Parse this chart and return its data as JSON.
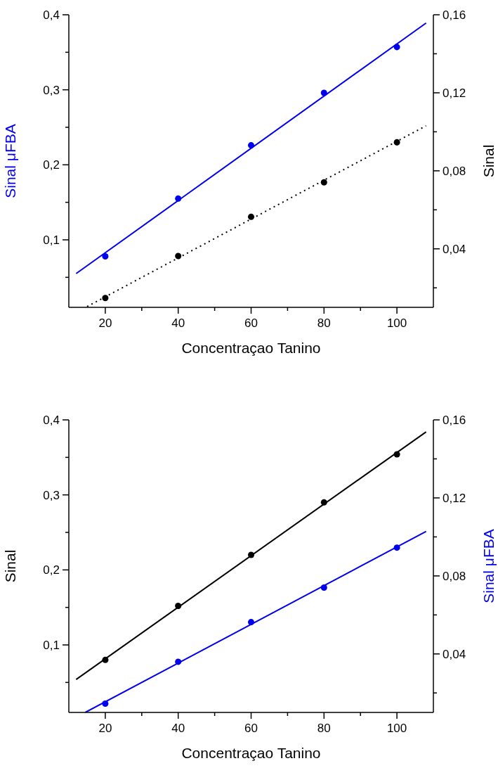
{
  "chart_data": [
    {
      "type": "scatter",
      "xlabel": "Concentraçao Tanino",
      "ylabel": "Sinal μFBA",
      "y2label": "Sinal",
      "marker": "circle",
      "xlim": [
        10,
        110
      ],
      "xticks": [
        20,
        {
          "value": 30,
          "label": null
        },
        40,
        {
          "value": 50,
          "label": null
        },
        60,
        {
          "value": 70,
          "label": null
        },
        80,
        {
          "value": 90,
          "label": null
        },
        100
      ],
      "ylim": [
        0.01,
        0.4
      ],
      "yticks": [
        {
          "value": 0.05,
          "label": null
        },
        {
          "value": 0.1,
          "label": "0,1"
        },
        {
          "value": 0.15,
          "label": null
        },
        {
          "value": 0.2,
          "label": "0,2"
        },
        {
          "value": 0.25,
          "label": null
        },
        {
          "value": 0.3,
          "label": "0,3"
        },
        {
          "value": 0.35,
          "label": null
        },
        {
          "value": 0.4,
          "label": "0,4"
        }
      ],
      "y2lim": [
        0.01,
        0.16
      ],
      "y2ticks": [
        {
          "value": 0.02,
          "label": null
        },
        {
          "value": 0.04,
          "label": "0,04"
        },
        {
          "value": 0.06,
          "label": null
        },
        {
          "value": 0.08,
          "label": "0,08"
        },
        {
          "value": 0.1,
          "label": null
        },
        {
          "value": 0.12,
          "label": "0,12"
        },
        {
          "value": 0.14,
          "label": null
        },
        {
          "value": 0.16,
          "label": "0,16"
        }
      ],
      "series": [
        {
          "type": "line",
          "marker": "none",
          "color": "#0000ee",
          "x": [
            12,
            108
          ],
          "values": [
            0.055,
            0.389
          ]
        },
        {
          "type": "line",
          "marker": "none",
          "color": "#000000",
          "line_style": "dotted",
          "axis": "y2",
          "x": [
            15,
            108
          ],
          "values": [
            0.0104,
            0.1031
          ]
        },
        {
          "color": "#0000ee",
          "x": [
            20,
            40,
            60,
            80,
            100
          ],
          "values": [
            0.078,
            0.155,
            0.226,
            0.296,
            0.357
          ]
        },
        {
          "color": "#000000",
          "axis": "y2",
          "x": [
            20,
            40,
            60,
            80,
            100
          ],
          "values": [
            0.0148,
            0.0363,
            0.0564,
            0.0741,
            0.0946
          ]
        }
      ]
    },
    {
      "type": "scatter",
      "xlabel": "Concentraçao Tanino",
      "ylabel": "Sinal",
      "y2label": "Sinal μFBA",
      "marker": "circle",
      "xlim": [
        10,
        110
      ],
      "xticks": [
        20,
        {
          "value": 30,
          "label": null
        },
        40,
        {
          "value": 50,
          "label": null
        },
        60,
        {
          "value": 70,
          "label": null
        },
        80,
        {
          "value": 90,
          "label": null
        },
        100
      ],
      "ylim": [
        0.01,
        0.4
      ],
      "yticks": [
        {
          "value": 0.05,
          "label": null
        },
        {
          "value": 0.1,
          "label": "0,1"
        },
        {
          "value": 0.15,
          "label": null
        },
        {
          "value": 0.2,
          "label": "0,2"
        },
        {
          "value": 0.25,
          "label": null
        },
        {
          "value": 0.3,
          "label": "0,3"
        },
        {
          "value": 0.35,
          "label": null
        },
        {
          "value": 0.4,
          "label": "0,4"
        }
      ],
      "y2lim": [
        0.01,
        0.16
      ],
      "y2ticks": [
        {
          "value": 0.02,
          "label": null
        },
        {
          "value": 0.04,
          "label": "0,04"
        },
        {
          "value": 0.06,
          "label": null
        },
        {
          "value": 0.08,
          "label": "0,08"
        },
        {
          "value": 0.1,
          "label": null
        },
        {
          "value": 0.12,
          "label": "0,12"
        },
        {
          "value": 0.14,
          "label": null
        },
        {
          "value": 0.16,
          "label": "0,16"
        }
      ],
      "series": [
        {
          "type": "line",
          "marker": "none",
          "color": "#000000",
          "x": [
            12,
            108
          ],
          "values": [
            0.054,
            0.384
          ]
        },
        {
          "type": "line",
          "marker": "none",
          "color": "#0000ee",
          "axis": "y2",
          "x": [
            14.5,
            108
          ],
          "values": [
            0.01,
            0.1028
          ]
        },
        {
          "color": "#000000",
          "x": [
            20,
            40,
            60,
            80,
            100
          ],
          "values": [
            0.08,
            0.152,
            0.22,
            0.29,
            0.354
          ]
        },
        {
          "color": "#0000ee",
          "axis": "y2",
          "x": [
            20,
            40,
            60,
            80,
            100
          ],
          "values": [
            0.0145,
            0.036,
            0.0563,
            0.074,
            0.0945
          ]
        }
      ]
    }
  ]
}
